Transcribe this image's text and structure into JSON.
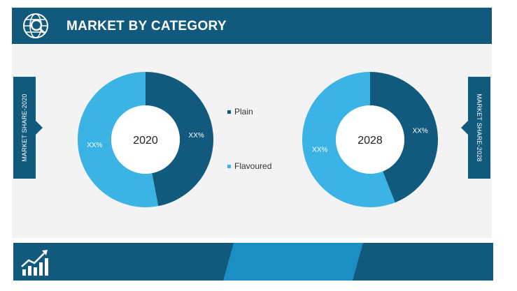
{
  "header": {
    "title": "MARKET BY CATEGORY",
    "icon": "globe-search-icon"
  },
  "side_tabs": {
    "left": "MARKET SHARE-2020",
    "right": "MARKET SHARE-2028"
  },
  "colors": {
    "dark": "#125a7d",
    "light": "#3bb3e5",
    "panel": "#f3f3f3"
  },
  "footer": {
    "icon": "growth-chart-icon"
  },
  "chart_data": [
    {
      "type": "pie",
      "center_label": "2020",
      "series": [
        {
          "name": "Plain",
          "value": 47,
          "label": "XX%",
          "color": "#125a7d"
        },
        {
          "name": "Flavoured",
          "value": 53,
          "label": "XX%",
          "color": "#3bb3e5"
        }
      ],
      "legend": "center-right"
    },
    {
      "type": "pie",
      "center_label": "2028",
      "series": [
        {
          "name": "Plain",
          "value": 44,
          "label": "XX%",
          "color": "#125a7d"
        },
        {
          "name": "Flavoured",
          "value": 56,
          "label": "XX%",
          "color": "#3bb3e5"
        }
      ],
      "legend": "center-left"
    }
  ]
}
